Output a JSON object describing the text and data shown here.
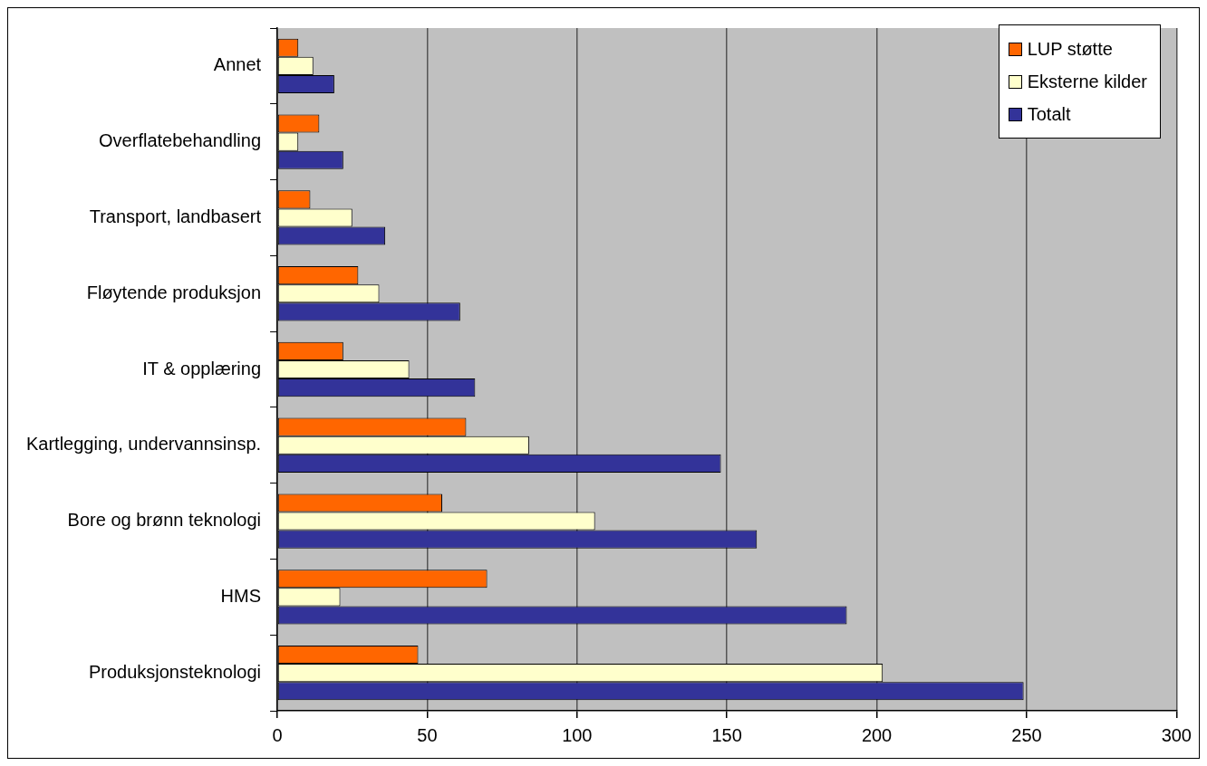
{
  "chart_data": {
    "type": "bar",
    "orientation": "horizontal",
    "categories": [
      "Annet",
      "Overflatebehandling",
      "Transport, landbasert",
      "Fløytende produksjon",
      "IT & opplæring",
      "Kartlegging, undervannsinsp.",
      "Bore og brønn teknologi",
      "HMS",
      "Produksjonsteknologi"
    ],
    "series": [
      {
        "name": "LUP støtte",
        "color": "#ff6600",
        "values": [
          7,
          14,
          11,
          27,
          22,
          63,
          55,
          70,
          47
        ]
      },
      {
        "name": "Eksterne kilder",
        "color": "#ffffcc",
        "values": [
          12,
          7,
          25,
          34,
          44,
          84,
          106,
          21,
          202
        ]
      },
      {
        "name": "Totalt",
        "color": "#333399",
        "values": [
          19,
          22,
          36,
          61,
          66,
          148,
          160,
          190,
          249
        ]
      }
    ],
    "xlim": [
      0,
      300
    ],
    "xticks": [
      0,
      50,
      100,
      150,
      200,
      250,
      300
    ],
    "grid": "x",
    "legend": "top right"
  }
}
